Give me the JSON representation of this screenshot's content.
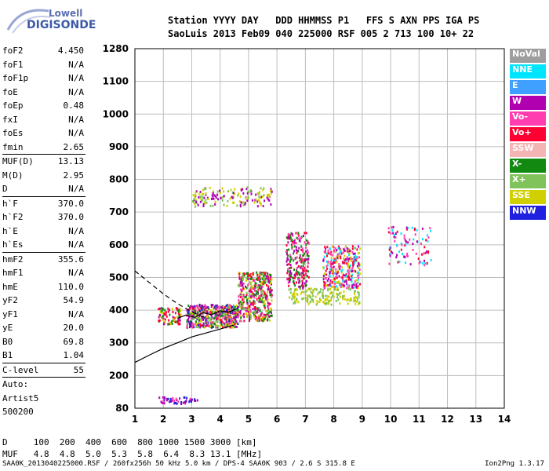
{
  "logo": {
    "line1": "Lowell",
    "line2": "DIGISONDE"
  },
  "header": {
    "line1": "Station YYYY DAY   DDD HHMMSS P1   FFS S AXN PPS IGA PS",
    "line2": "SaoLuis 2013 Feb09 040 225000 RSF 005 2 713 100 10+ 22"
  },
  "params": {
    "g1": [
      {
        "k": "foF2",
        "v": "4.450"
      },
      {
        "k": "foF1",
        "v": "N/A"
      },
      {
        "k": "foF1p",
        "v": "N/A"
      },
      {
        "k": "foE",
        "v": "N/A"
      },
      {
        "k": "foEp",
        "v": "0.48"
      },
      {
        "k": "fxI",
        "v": "N/A"
      },
      {
        "k": "foEs",
        "v": "N/A"
      },
      {
        "k": "fmin",
        "v": "2.65"
      }
    ],
    "g2": [
      {
        "k": "MUF(D)",
        "v": "13.13"
      },
      {
        "k": "M(D)",
        "v": "2.95"
      },
      {
        "k": "D",
        "v": "N/A"
      }
    ],
    "g3": [
      {
        "k": "h`F",
        "v": "370.0"
      },
      {
        "k": "h`F2",
        "v": "370.0"
      },
      {
        "k": "h`E",
        "v": "N/A"
      },
      {
        "k": "h`Es",
        "v": "N/A"
      }
    ],
    "g4": [
      {
        "k": "hmF2",
        "v": "355.6"
      },
      {
        "k": "hmF1",
        "v": "N/A"
      },
      {
        "k": "hmE",
        "v": "110.0"
      },
      {
        "k": "yF2",
        "v": "54.9"
      },
      {
        "k": "yF1",
        "v": "N/A"
      },
      {
        "k": "yE",
        "v": "20.0"
      },
      {
        "k": "B0",
        "v": "69.8"
      },
      {
        "k": "B1",
        "v": "1.04"
      }
    ],
    "g5": [
      {
        "k": "C-level",
        "v": "55"
      }
    ],
    "g6": [
      "Auto:",
      "Artist5",
      "500200"
    ]
  },
  "legend": [
    {
      "label": "NoVal",
      "color": "#9e9e9e"
    },
    {
      "label": "NNE",
      "color": "#00e5ff"
    },
    {
      "label": "E",
      "color": "#3fa0ff"
    },
    {
      "label": "W",
      "color": "#b000b0"
    },
    {
      "label": "Vo-",
      "color": "#ff3db0"
    },
    {
      "label": "Vo+",
      "color": "#ff0033"
    },
    {
      "label": "SSW",
      "color": "#f5b4b4"
    },
    {
      "label": "X-",
      "color": "#128a12"
    },
    {
      "label": "X+",
      "color": "#7fc35a"
    },
    {
      "label": "SSE",
      "color": "#d0d000"
    },
    {
      "label": "NNW",
      "color": "#2020e0"
    }
  ],
  "bottom": {
    "line1": "D     100  200  400  600  800 1000 1500 3000 [km]",
    "line2": "MUF   4.8  4.8  5.0  5.3  5.8  6.4  8.3 13.1 [MHz]"
  },
  "footer": "SAA0K_2013040225000.RSF / 260fx256h 50 kHz 5.0 km / DPS-4 SAA0K 903 / 2.6 S 315.8 E",
  "version": "Ion2Png 1.3.17",
  "chart_data": {
    "type": "scatter",
    "xlim": [
      1,
      14
    ],
    "x_ticks": [
      1,
      2,
      3,
      4,
      5,
      6,
      7,
      8,
      9,
      10,
      11,
      12,
      13,
      14
    ],
    "y_ticks": [
      80,
      200,
      300,
      400,
      500,
      600,
      700,
      800,
      900,
      1000,
      1100,
      1280
    ],
    "grid": true,
    "clusters": [
      {
        "x": [
          2.8,
          4.6
        ],
        "y": [
          350,
          420
        ],
        "n": 520,
        "colors": [
          "Vo+",
          "Vo-",
          "W",
          "X-",
          "SSE",
          "NNW",
          "X+"
        ]
      },
      {
        "x": [
          4.6,
          5.8
        ],
        "y": [
          370,
          520
        ],
        "n": 460,
        "colors": [
          "Vo+",
          "Vo-",
          "W",
          "X-",
          "SSE",
          "X+"
        ]
      },
      {
        "x": [
          6.3,
          7.1
        ],
        "y": [
          470,
          640
        ],
        "n": 230,
        "colors": [
          "Vo+",
          "W",
          "Vo-",
          "X-"
        ]
      },
      {
        "x": [
          7.6,
          8.9
        ],
        "y": [
          470,
          600
        ],
        "n": 330,
        "colors": [
          "Vo+",
          "W",
          "Vo-",
          "NNE",
          "SSE"
        ]
      },
      {
        "x": [
          9.9,
          11.4
        ],
        "y": [
          540,
          660
        ],
        "n": 90,
        "colors": [
          "Vo+",
          "W",
          "Vo-",
          "NNE"
        ]
      },
      {
        "x": [
          3.0,
          5.8
        ],
        "y": [
          720,
          780
        ],
        "n": 160,
        "colors": [
          "SSE",
          "X+",
          "W"
        ]
      },
      {
        "x": [
          6.4,
          8.9
        ],
        "y": [
          420,
          470
        ],
        "n": 170,
        "colors": [
          "SSE",
          "X+"
        ]
      },
      {
        "x": [
          1.8,
          2.6
        ],
        "y": [
          360,
          410
        ],
        "n": 90,
        "colors": [
          "Vo+",
          "W",
          "X-",
          "SSE"
        ]
      },
      {
        "x": [
          1.8,
          3.2
        ],
        "y": [
          100,
          125
        ],
        "n": 50,
        "colors": [
          "W",
          "Vo-",
          "NNW"
        ]
      }
    ],
    "traces": [
      {
        "name": "",
        "style": "solid",
        "x": [
          1.0,
          1.5,
          2.0,
          2.5,
          3.0,
          3.5,
          4.0,
          4.5
        ],
        "y": [
          240,
          262,
          283,
          300,
          318,
          330,
          342,
          355
        ]
      },
      {
        "name": "",
        "style": "dashed",
        "x": [
          1.0,
          1.5,
          2.0,
          2.5,
          3.0,
          3.5
        ],
        "y": [
          520,
          485,
          450,
          420,
          395,
          375
        ]
      },
      {
        "name": "",
        "style": "solid",
        "x": [
          2.5,
          2.8,
          3.1,
          3.4,
          3.7,
          4.0,
          4.3,
          4.6
        ],
        "y": [
          375,
          385,
          378,
          392,
          386,
          398,
          394,
          405
        ]
      }
    ]
  }
}
